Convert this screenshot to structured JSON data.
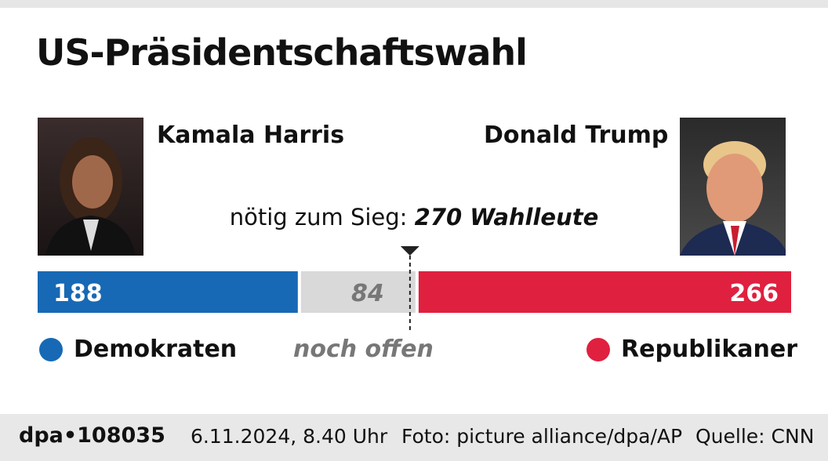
{
  "title": "US-Präsidentschaftswahl",
  "candidates": {
    "left": {
      "name": "Kamala Harris"
    },
    "right": {
      "name": "Donald Trump"
    }
  },
  "threshold_label": "nötig zum Sieg:",
  "threshold_value": "270 Wahlleute",
  "legend": {
    "dem": "Demokraten",
    "open": "noch offen",
    "rep": "Republikaner"
  },
  "colors": {
    "dem": "#1769b5",
    "open": "#d9d9d9",
    "rep": "#e0203f"
  },
  "chart_data": {
    "type": "bar",
    "orientation": "horizontal-stacked",
    "categories": [
      "Demokraten",
      "noch offen",
      "Republikaner"
    ],
    "values": [
      188,
      84,
      266
    ],
    "labels": [
      "188",
      "84",
      "266"
    ],
    "threshold": 270,
    "xlim": [
      0,
      538
    ]
  },
  "footer": {
    "id": "dpa•108035",
    "date": "6.11.2024, 8.40 Uhr",
    "photo": "Foto: picture alliance/dpa/AP",
    "source": "Quelle: CNN"
  }
}
